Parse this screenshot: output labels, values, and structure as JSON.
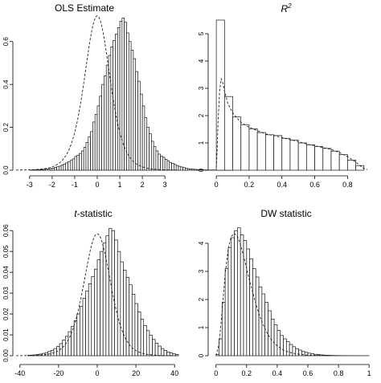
{
  "chart_data": [
    {
      "type": "bar",
      "title": "OLS Estimate",
      "title_italic": false,
      "xlim": [
        -3.6,
        3.6
      ],
      "ylim": [
        0,
        0.7
      ],
      "xticks": [
        -3,
        -2,
        -1,
        0,
        1,
        2,
        3
      ],
      "yticks": [
        0.0,
        0.2,
        0.4,
        0.6
      ],
      "ytick_labels": [
        "0.0",
        "0.2",
        "0.4",
        "0.6"
      ],
      "bins": {
        "start": -3.0,
        "width": 0.1,
        "values": [
          0.001,
          0.001,
          0.002,
          0.002,
          0.003,
          0.003,
          0.004,
          0.005,
          0.007,
          0.008,
          0.01,
          0.013,
          0.016,
          0.019,
          0.024,
          0.029,
          0.034,
          0.04,
          0.046,
          0.053,
          0.064,
          0.07,
          0.078,
          0.09,
          0.107,
          0.13,
          0.155,
          0.18,
          0.225,
          0.26,
          0.3,
          0.345,
          0.4,
          0.44,
          0.49,
          0.535,
          0.575,
          0.605,
          0.635,
          0.665,
          0.695,
          0.71,
          0.69,
          0.64,
          0.6,
          0.56,
          0.52,
          0.46,
          0.415,
          0.355,
          0.3,
          0.245,
          0.2,
          0.17,
          0.135,
          0.11,
          0.09,
          0.075,
          0.065,
          0.06,
          0.051,
          0.044,
          0.036,
          0.032,
          0.027,
          0.022,
          0.018,
          0.015,
          0.012,
          0.009,
          0.007,
          0.006,
          0.005,
          0.004,
          0.003,
          0.002,
          0.002,
          0.001,
          0.001,
          0.001,
          0.001,
          0.001,
          0.001,
          0.001,
          0.001,
          0.001,
          0.001,
          0.001,
          0.001,
          0.001
        ]
      },
      "density": {
        "mu": 0.0,
        "sigma": 0.58,
        "df": 6,
        "scale": 0.72
      }
    },
    {
      "type": "bar",
      "title": "R",
      "title_superscript": "2",
      "title_italic": true,
      "xlim": [
        -0.03,
        0.95
      ],
      "ylim": [
        0,
        5.5
      ],
      "xticks": [
        0.0,
        0.2,
        0.4,
        0.6,
        0.8
      ],
      "yticks": [
        0,
        1,
        2,
        3,
        4,
        5
      ],
      "ytick_labels": [
        "0",
        "1",
        "2",
        "3",
        "4",
        "5"
      ],
      "bins": {
        "start": 0.0,
        "width": 0.05,
        "values": [
          5.5,
          2.7,
          1.95,
          1.67,
          1.52,
          1.38,
          1.3,
          1.27,
          1.17,
          1.1,
          1.0,
          0.93,
          0.87,
          0.8,
          0.7,
          0.57,
          0.37,
          0.17
        ]
      },
      "density_points": [
        [
          0.0,
          0.1
        ],
        [
          0.005,
          0.7
        ],
        [
          0.01,
          1.7
        ],
        [
          0.02,
          2.9
        ],
        [
          0.03,
          3.35
        ],
        [
          0.04,
          3.2
        ],
        [
          0.05,
          2.9
        ],
        [
          0.07,
          2.45
        ],
        [
          0.1,
          2.1
        ],
        [
          0.15,
          1.75
        ],
        [
          0.2,
          1.57
        ],
        [
          0.25,
          1.45
        ],
        [
          0.3,
          1.33
        ],
        [
          0.35,
          1.27
        ],
        [
          0.4,
          1.2
        ],
        [
          0.45,
          1.12
        ],
        [
          0.5,
          1.05
        ],
        [
          0.55,
          0.96
        ],
        [
          0.6,
          0.9
        ],
        [
          0.65,
          0.83
        ],
        [
          0.7,
          0.76
        ],
        [
          0.75,
          0.65
        ],
        [
          0.8,
          0.5
        ],
        [
          0.85,
          0.3
        ],
        [
          0.88,
          0.15
        ],
        [
          0.9,
          0.06
        ],
        [
          0.92,
          0.02
        ]
      ]
    },
    {
      "type": "bar",
      "title": "t-statistic",
      "title_italic_part": "t",
      "title_rest": "-statistic",
      "xlim": [
        -42,
        42
      ],
      "ylim": [
        0,
        0.062
      ],
      "xticks": [
        -40,
        -20,
        0,
        20,
        40
      ],
      "yticks": [
        0.0,
        0.01,
        0.02,
        0.03,
        0.04,
        0.05,
        0.06
      ],
      "ytick_labels": [
        "0.00",
        "0.01",
        "0.02",
        "0.03",
        "0.04",
        "0.05",
        "0.06"
      ],
      "bins": {
        "start": -36,
        "width": 1.5,
        "values": [
          0.0002,
          0.0003,
          0.0004,
          0.0006,
          0.0008,
          0.0011,
          0.0015,
          0.002,
          0.0026,
          0.0034,
          0.0045,
          0.0058,
          0.0075,
          0.0093,
          0.0115,
          0.014,
          0.0168,
          0.02,
          0.0236,
          0.0275,
          0.031,
          0.0345,
          0.038,
          0.0415,
          0.046,
          0.05,
          0.054,
          0.0575,
          0.061,
          0.06,
          0.0555,
          0.05,
          0.045,
          0.041,
          0.0375,
          0.034,
          0.0295,
          0.025,
          0.021,
          0.0175,
          0.0145,
          0.012,
          0.0098,
          0.0078,
          0.006,
          0.0046,
          0.0034,
          0.0025,
          0.0018,
          0.0013,
          0.0009,
          0.0006
        ]
      },
      "density": {
        "mu": 0.0,
        "sigma": 7.0,
        "df": 8,
        "scale": 0.0585
      }
    },
    {
      "type": "bar",
      "title": "DW statistic",
      "title_italic": false,
      "xlim": [
        -0.03,
        1.02
      ],
      "ylim": [
        0,
        4.6
      ],
      "xticks": [
        0.0,
        0.2,
        0.4,
        0.6,
        0.8,
        1.0
      ],
      "yticks": [
        0,
        1,
        2,
        3,
        4
      ],
      "ytick_labels": [
        "0",
        "1",
        "2",
        "3",
        "4"
      ],
      "bins": {
        "start": 0.0,
        "width": 0.02,
        "values": [
          0.05,
          0.6,
          1.9,
          3.1,
          3.85,
          4.2,
          4.45,
          4.55,
          4.3,
          4.1,
          3.8,
          3.45,
          3.1,
          2.8,
          2.45,
          2.2,
          1.9,
          1.6,
          1.3,
          1.1,
          0.9,
          0.72,
          0.6,
          0.5,
          0.4,
          0.32,
          0.25,
          0.2,
          0.15,
          0.12,
          0.09,
          0.07,
          0.05,
          0.04,
          0.03,
          0.02,
          0.015,
          0.01,
          0.008,
          0.006,
          0.005,
          0.004,
          0.003,
          0.002,
          0.002,
          0.001,
          0.001,
          0.001,
          0.001,
          0.001
        ]
      },
      "density_points": [
        [
          0.0,
          0.0
        ],
        [
          0.02,
          0.4
        ],
        [
          0.04,
          1.6
        ],
        [
          0.06,
          2.9
        ],
        [
          0.08,
          3.8
        ],
        [
          0.1,
          4.25
        ],
        [
          0.12,
          4.35
        ],
        [
          0.14,
          4.25
        ],
        [
          0.16,
          3.95
        ],
        [
          0.18,
          3.55
        ],
        [
          0.2,
          3.1
        ],
        [
          0.22,
          2.65
        ],
        [
          0.24,
          2.25
        ],
        [
          0.26,
          1.85
        ],
        [
          0.28,
          1.5
        ],
        [
          0.3,
          1.2
        ],
        [
          0.32,
          0.95
        ],
        [
          0.34,
          0.75
        ],
        [
          0.36,
          0.58
        ],
        [
          0.38,
          0.45
        ],
        [
          0.4,
          0.35
        ],
        [
          0.44,
          0.2
        ],
        [
          0.48,
          0.12
        ],
        [
          0.52,
          0.07
        ],
        [
          0.56,
          0.04
        ],
        [
          0.6,
          0.02
        ],
        [
          0.7,
          0.01
        ],
        [
          0.8,
          0.0
        ]
      ]
    }
  ]
}
